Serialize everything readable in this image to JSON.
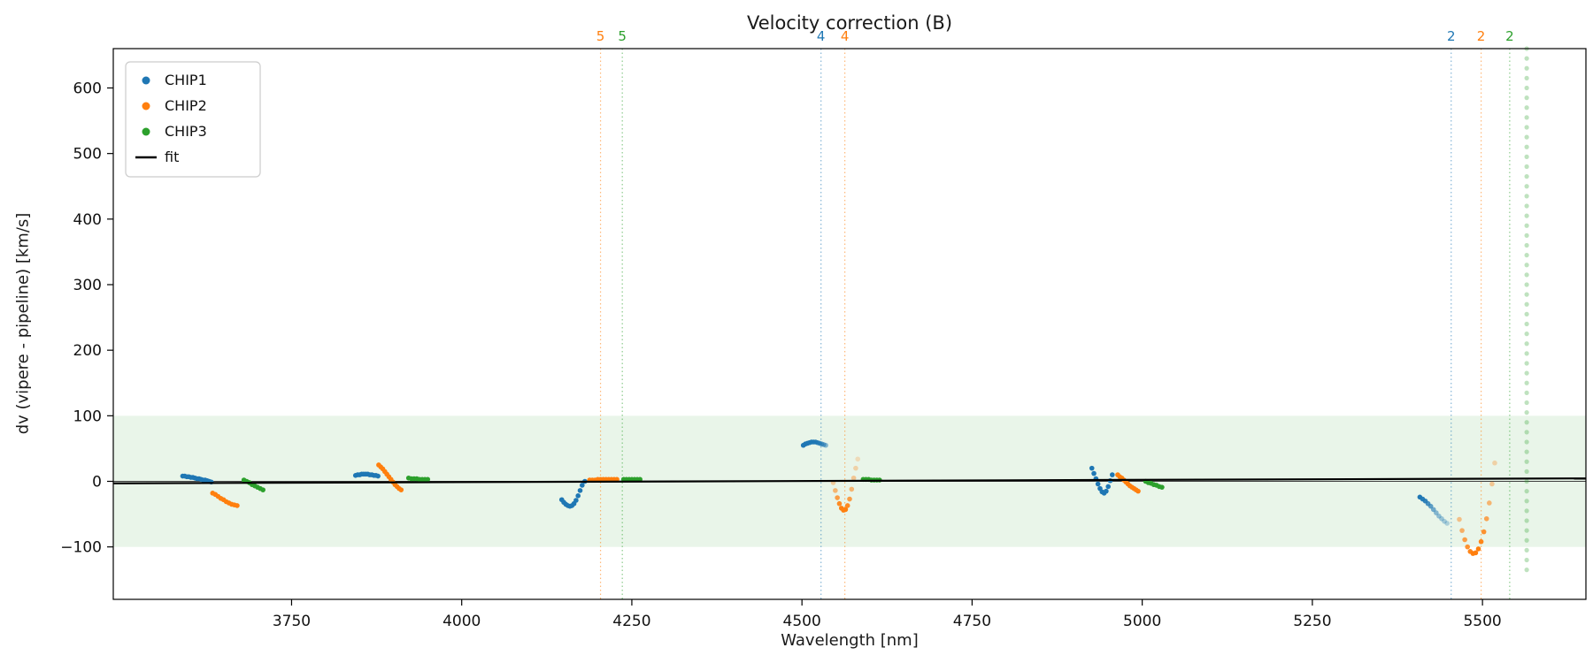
{
  "chart_data": {
    "type": "scatter",
    "title": "Velocity correction (B)",
    "xlabel": "Wavelength [nm]",
    "ylabel": "dv (vipere - pipeline) [km/s]",
    "xlim": [
      3488,
      5652
    ],
    "ylim": [
      -180,
      660
    ],
    "xticks": [
      3750,
      4000,
      4250,
      4500,
      4750,
      5000,
      5250,
      5500
    ],
    "yticks": [
      -100,
      0,
      100,
      200,
      300,
      400,
      500,
      600
    ],
    "grid": false,
    "legend_position": "upper left",
    "band": {
      "ymin": -100,
      "ymax": 100,
      "color": "#2ca02c",
      "alpha": 0.1
    },
    "zero_line": {
      "y": 0,
      "color": "#404040"
    },
    "fit": {
      "x": [
        3488,
        5652
      ],
      "y": [
        -3,
        4.5
      ],
      "color": "#000000"
    },
    "vlines": [
      {
        "x": 4204,
        "label": "5",
        "color": "#ff7f0e"
      },
      {
        "x": 4236,
        "label": "5",
        "color": "#2ca02c"
      },
      {
        "x": 4528,
        "label": "4",
        "color": "#1f77b4"
      },
      {
        "x": 4563,
        "label": "4",
        "color": "#ff7f0e"
      },
      {
        "x": 5454,
        "label": "2",
        "color": "#1f77b4"
      },
      {
        "x": 5498,
        "label": "2",
        "color": "#ff7f0e"
      },
      {
        "x": 5540,
        "label": "2",
        "color": "#2ca02c"
      }
    ],
    "series": [
      {
        "name": "CHIP1",
        "color": "#1f77b4",
        "clusters": [
          {
            "x": [
              3590,
              3593,
              3596,
              3599,
              3602,
              3605,
              3608,
              3611,
              3614,
              3617,
              3620,
              3623,
              3626,
              3629,
              3632
            ],
            "y": [
              8,
              8,
              7,
              7,
              6,
              6,
              5,
              4,
              4,
              3,
              2,
              2,
              1,
              0,
              -1
            ]
          },
          {
            "x": [
              3844,
              3847,
              3850,
              3853,
              3856,
              3859,
              3862,
              3865,
              3868,
              3871,
              3874,
              3877
            ],
            "y": [
              9,
              10,
              10,
              11,
              11,
              11,
              11,
              10,
              10,
              9,
              9,
              8
            ]
          },
          {
            "x": [
              4147,
              4150,
              4153,
              4156,
              4159,
              4162,
              4165,
              4168,
              4171,
              4174,
              4177,
              4181
            ],
            "y": [
              -28,
              -32,
              -35,
              -37,
              -38,
              -37,
              -34,
              -29,
              -22,
              -14,
              -6,
              0
            ]
          },
          {
            "x": [
              4502,
              4505,
              4508,
              4511,
              4514,
              4517,
              4520,
              4523,
              4526,
              4529,
              4532,
              4535
            ],
            "y": [
              55,
              57,
              58,
              59,
              60,
              60,
              60,
              59,
              58,
              57,
              56,
              55
            ],
            "alpha": [
              1,
              1,
              1,
              1,
              1,
              0.95,
              0.9,
              0.85,
              0.8,
              0.7,
              0.6,
              0.5
            ]
          },
          {
            "x": [
              4926,
              4929,
              4932,
              4935,
              4938,
              4941,
              4944,
              4947,
              4950,
              4953,
              4956
            ],
            "y": [
              20,
              12,
              4,
              -4,
              -11,
              -16,
              -18,
              -15,
              -8,
              1,
              10
            ]
          },
          {
            "x": [
              5408,
              5412,
              5416,
              5420,
              5424,
              5428,
              5432,
              5436,
              5440,
              5444,
              5448
            ],
            "y": [
              -24,
              -27,
              -30,
              -34,
              -38,
              -43,
              -48,
              -53,
              -57,
              -61,
              -64
            ],
            "alpha": [
              1,
              0.95,
              0.9,
              0.8,
              0.7,
              0.6,
              0.5,
              0.45,
              0.4,
              0.35,
              0.3
            ]
          }
        ]
      },
      {
        "name": "CHIP2",
        "color": "#ff7f0e",
        "clusters": [
          {
            "x": [
              3634,
              3638,
              3642,
              3646,
              3650,
              3654,
              3658,
              3662,
              3666,
              3670
            ],
            "y": [
              -18,
              -20,
              -23,
              -26,
              -28,
              -31,
              -33,
              -35,
              -36,
              -37
            ]
          },
          {
            "x": [
              3878,
              3881,
              3884,
              3887,
              3890,
              3893,
              3896,
              3899,
              3902,
              3905,
              3908,
              3911
            ],
            "y": [
              25,
              22,
              19,
              15,
              11,
              7,
              3,
              -1,
              -5,
              -8,
              -11,
              -13
            ]
          },
          {
            "x": [
              4188,
              4192,
              4196,
              4200,
              4204,
              4208,
              4212,
              4216,
              4220,
              4224,
              4228
            ],
            "y": [
              2,
              2,
              2,
              3,
              3,
              3,
              3,
              3,
              3,
              3,
              3
            ]
          },
          {
            "x": [
              4546,
              4549,
              4552,
              4555,
              4558,
              4561,
              4564,
              4567,
              4570,
              4573,
              4576,
              4579,
              4582
            ],
            "y": [
              -2,
              -14,
              -25,
              -34,
              -41,
              -44,
              -43,
              -37,
              -27,
              -12,
              5,
              20,
              34
            ],
            "alpha": [
              0.35,
              0.55,
              0.75,
              0.9,
              1,
              1,
              1,
              0.9,
              0.75,
              0.55,
              0.4,
              0.3,
              0.22
            ]
          },
          {
            "x": [
              4964,
              4967,
              4970,
              4973,
              4976,
              4979,
              4982,
              4985,
              4988,
              4991,
              4994
            ],
            "y": [
              10,
              7,
              5,
              2,
              -1,
              -4,
              -7,
              -9,
              -11,
              -13,
              -15
            ]
          },
          {
            "x": [
              5466,
              5470,
              5474,
              5478,
              5482,
              5486,
              5490,
              5494,
              5498,
              5502,
              5506,
              5510,
              5514,
              5518
            ],
            "y": [
              -58,
              -75,
              -89,
              -100,
              -107,
              -110,
              -109,
              -103,
              -92,
              -77,
              -57,
              -33,
              -4,
              28
            ],
            "alpha": [
              0.45,
              0.6,
              0.75,
              0.85,
              0.95,
              1,
              1,
              1,
              0.95,
              0.85,
              0.7,
              0.55,
              0.4,
              0.3
            ]
          }
        ]
      },
      {
        "name": "CHIP3",
        "color": "#2ca02c",
        "clusters": [
          {
            "x": [
              3680,
              3684,
              3688,
              3692,
              3696,
              3700,
              3704,
              3708
            ],
            "y": [
              2,
              0,
              -2,
              -5,
              -7,
              -9,
              -11,
              -13
            ]
          },
          {
            "x": [
              3922,
              3926,
              3930,
              3934,
              3938,
              3942,
              3946,
              3950
            ],
            "y": [
              5,
              4,
              4,
              4,
              3,
              3,
              3,
              3
            ]
          },
          {
            "x": [
              4238,
              4242,
              4246,
              4250,
              4254,
              4258,
              4262
            ],
            "y": [
              3,
              3,
              3,
              3,
              3,
              3,
              3
            ]
          },
          {
            "x": [
              4590,
              4594,
              4598,
              4602,
              4606,
              4610,
              4614
            ],
            "y": [
              3,
              3,
              3,
              2,
              2,
              2,
              2
            ]
          },
          {
            "x": [
              5005,
              5009,
              5013,
              5017,
              5021,
              5025,
              5029
            ],
            "y": [
              0,
              -2,
              -3,
              -5,
              -6,
              -8,
              -9
            ]
          },
          {
            "x_const": 5565,
            "alpha_const": 0.3,
            "size": 2.6,
            "y": [
              -135,
              -120,
              -105,
              -90,
              -75,
              -60,
              -45,
              -30,
              -15,
              0,
              15,
              30,
              45,
              60,
              75,
              90,
              105,
              120,
              135,
              150,
              165,
              180,
              195,
              210,
              225,
              240,
              255,
              270,
              285,
              300,
              315,
              330,
              345,
              360,
              375,
              390,
              405,
              420,
              435,
              450,
              465,
              480,
              495,
              510,
              525,
              540,
              555,
              570,
              585,
              600,
              615,
              630,
              645,
              660
            ]
          }
        ]
      }
    ],
    "legend": {
      "items": [
        {
          "label": "CHIP1",
          "color": "#1f77b4",
          "marker": "dot"
        },
        {
          "label": "CHIP2",
          "color": "#ff7f0e",
          "marker": "dot"
        },
        {
          "label": "CHIP3",
          "color": "#2ca02c",
          "marker": "dot"
        },
        {
          "label": "fit",
          "color": "#000000",
          "marker": "line"
        }
      ]
    }
  }
}
